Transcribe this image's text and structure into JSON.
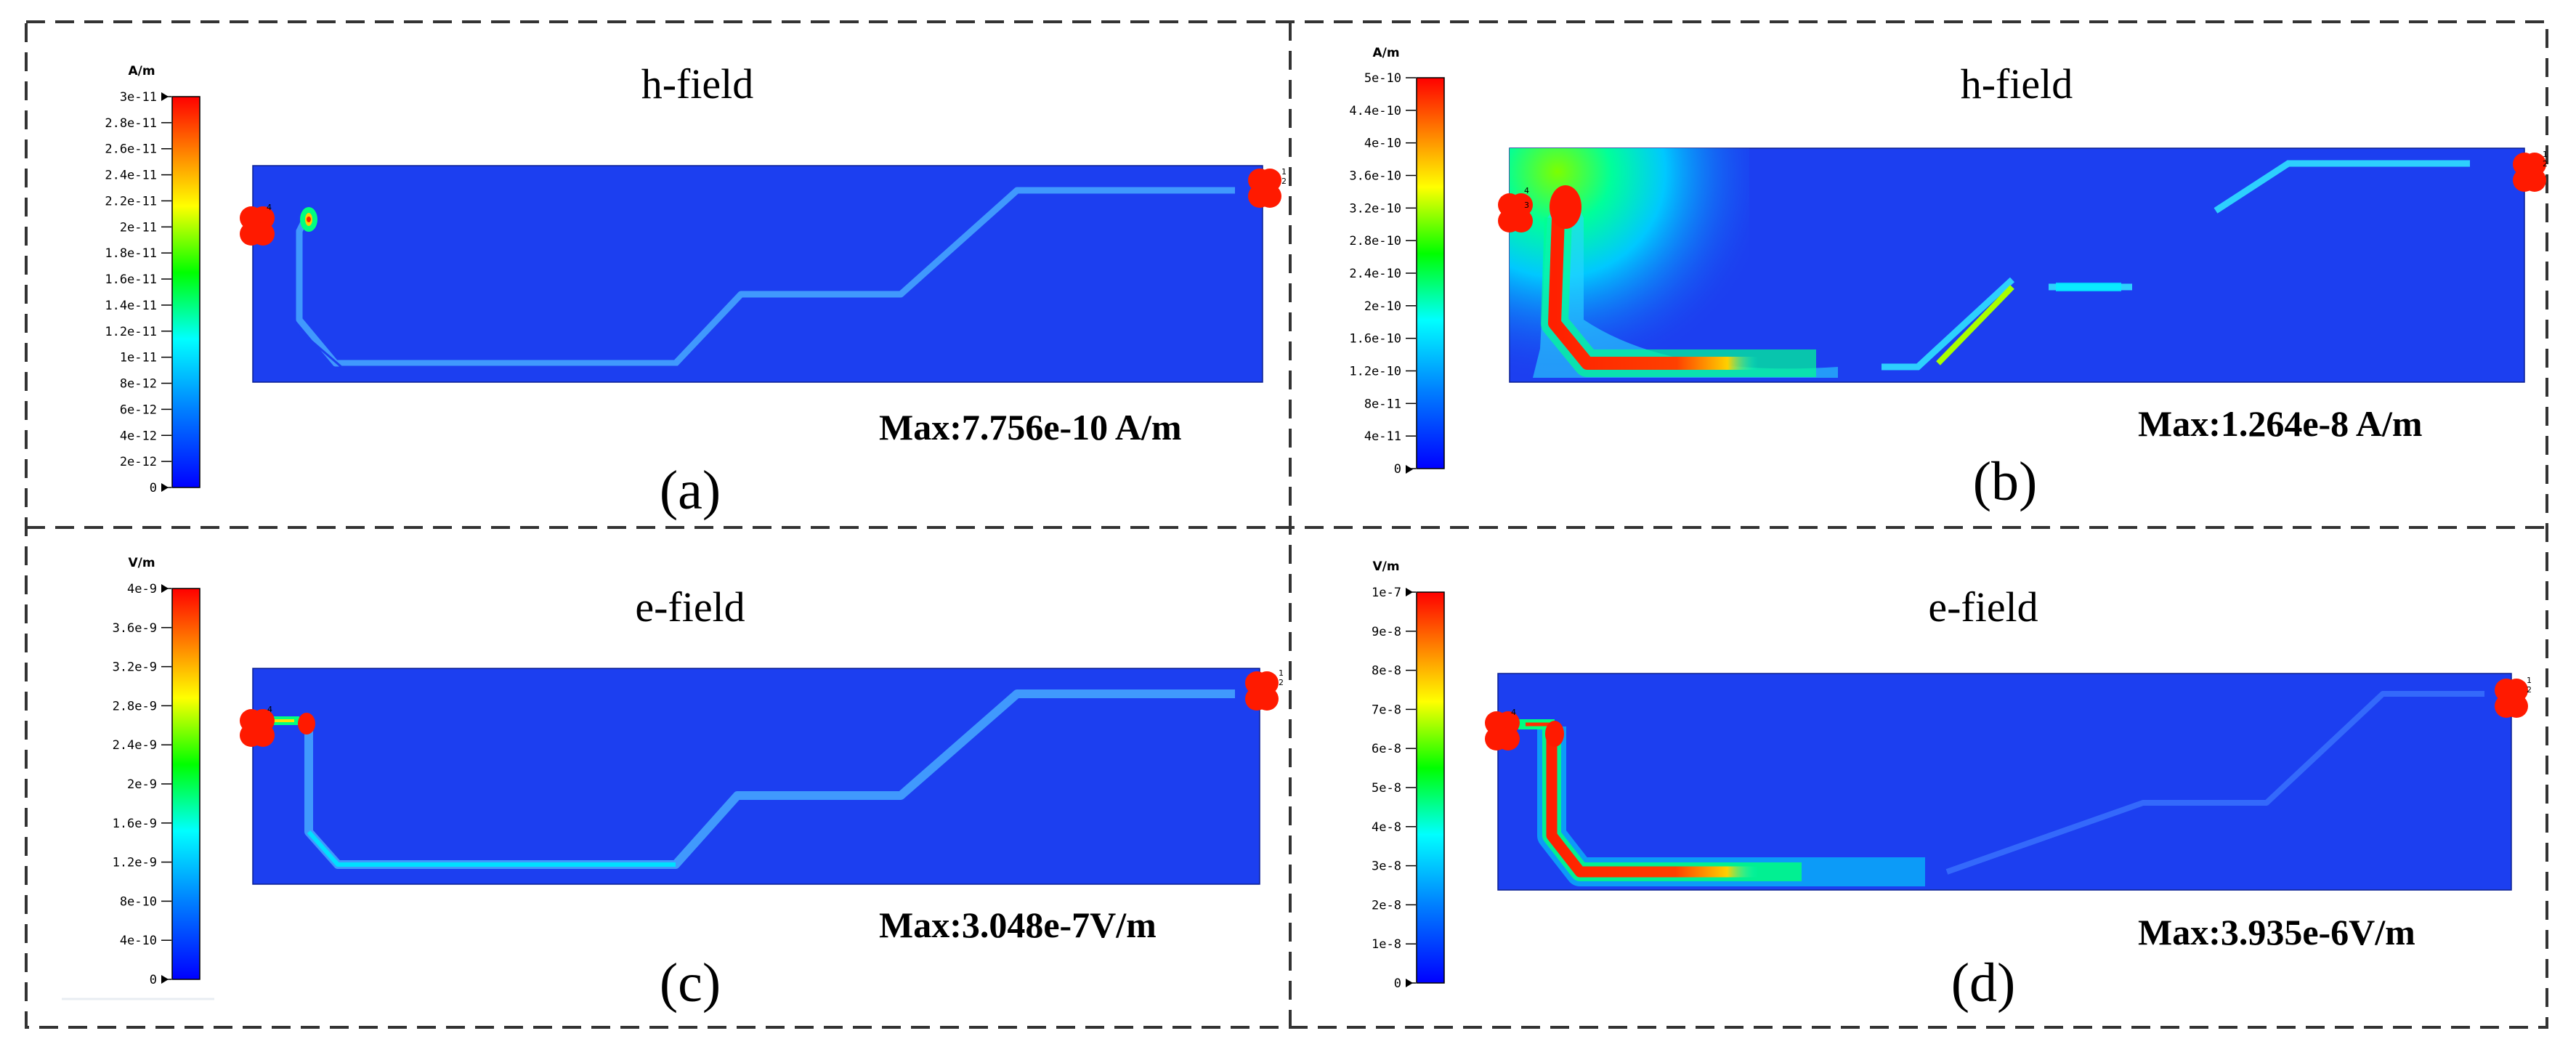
{
  "panels": [
    {
      "id": "a",
      "title": "h-field",
      "label": "(a)",
      "max_text": "Max:7.756e-10 A/m",
      "colorbar": {
        "unit": "A/m",
        "ticks": [
          "3e-11",
          "2.8e-11",
          "2.6e-11",
          "2.4e-11",
          "2.2e-11",
          "2e-11",
          "1.8e-11",
          "1.6e-11",
          "1.4e-11",
          "1.2e-11",
          "1e-11",
          "8e-12",
          "6e-12",
          "4e-12",
          "2e-12",
          "0"
        ]
      }
    },
    {
      "id": "b",
      "title": "h-field",
      "label": "(b)",
      "max_text": "Max:1.264e-8 A/m",
      "colorbar": {
        "unit": "A/m",
        "ticks": [
          "5e-10",
          "4.4e-10",
          "4e-10",
          "3.6e-10",
          "3.2e-10",
          "2.8e-10",
          "2.4e-10",
          "2e-10",
          "1.6e-10",
          "1.2e-10",
          "8e-11",
          "4e-11",
          "0"
        ]
      }
    },
    {
      "id": "c",
      "title": "e-field",
      "label": "(c)",
      "max_text": "Max:3.048e-7V/m",
      "colorbar": {
        "unit": "V/m",
        "ticks": [
          "4e-9",
          "3.6e-9",
          "3.2e-9",
          "2.8e-9",
          "2.4e-9",
          "2e-9",
          "1.6e-9",
          "1.2e-9",
          "8e-10",
          "4e-10",
          "0"
        ]
      }
    },
    {
      "id": "d",
      "title": "e-field",
      "label": "(d)",
      "max_text": "Max:3.935e-6V/m",
      "colorbar": {
        "unit": "V/m",
        "ticks": [
          "1e-7",
          "9e-8",
          "8e-8",
          "7e-8",
          "6e-8",
          "5e-8",
          "4e-8",
          "3e-8",
          "2e-8",
          "1e-8",
          "0"
        ]
      }
    }
  ],
  "ports": {
    "input": [
      "3",
      "4"
    ],
    "output": [
      "1",
      "2"
    ]
  },
  "colors": {
    "field_background": "#1c3ff0",
    "hotspot": "#ff1a00",
    "dashed_border": "#333333"
  },
  "colorbar_gradient": [
    "#0000ff",
    "#0080ff",
    "#00ffff",
    "#00ff00",
    "#ffff00",
    "#ff8000",
    "#ff0000"
  ]
}
